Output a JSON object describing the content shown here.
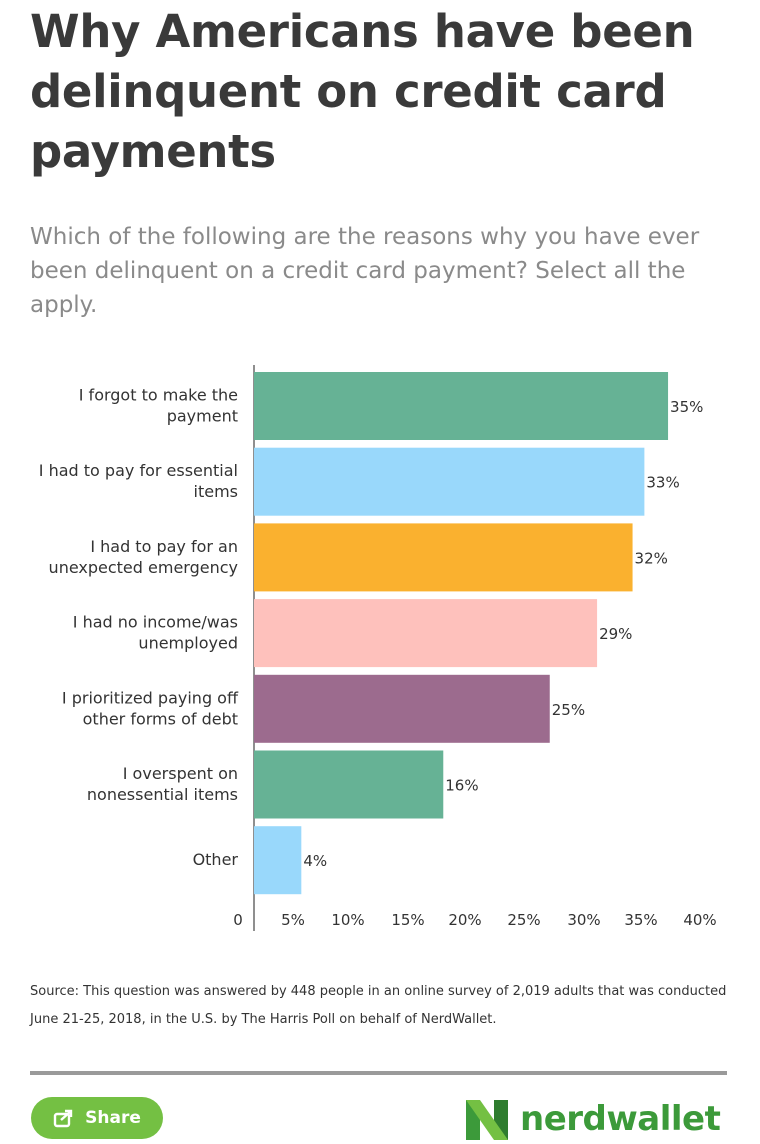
{
  "header": {
    "title": "Why Americans have been delinquent on credit card payments",
    "subtitle": "Which of the following are the reasons why you have ever been delinquent on a credit card payment? Select all the apply."
  },
  "chart_data": {
    "type": "bar",
    "orientation": "horizontal",
    "title": "",
    "xlabel": "",
    "ylabel": "",
    "categories": [
      [
        "I forgot to make the",
        "payment"
      ],
      [
        "I had to pay for essential",
        "items"
      ],
      [
        "I had to pay for an",
        "unexpected emergency"
      ],
      [
        "I had no income/was",
        "unemployed"
      ],
      [
        "I prioritized paying off",
        "other forms of debt"
      ],
      [
        "I overspent on",
        "nonessential items"
      ],
      [
        "Other"
      ]
    ],
    "values": [
      35,
      33,
      32,
      29,
      25,
      16,
      4
    ],
    "value_labels": [
      "35%",
      "33%",
      "32%",
      "29%",
      "25%",
      "16%",
      "4%"
    ],
    "colors": [
      "#66b295",
      "#99d8fb",
      "#fab12f",
      "#fec1bc",
      "#9c6b8e",
      "#66b295",
      "#99d8fb"
    ],
    "x_ticks": [
      "0",
      "5%",
      "10%",
      "15%",
      "20%",
      "25%",
      "30%",
      "35%",
      "40%"
    ],
    "xlim": [
      0,
      40
    ],
    "grid": false,
    "legend": "none"
  },
  "footer": {
    "source": "Source: This question was answered by 448 people in an online survey of 2,019 adults that was conducted June 21-25, 2018, in the U.S. by The Harris Poll on behalf of NerdWallet.",
    "share_label": "Share",
    "share_icon": "share-icon",
    "brand": "nerdwallet",
    "brand_color": "#3c9a3a",
    "share_color": "#74c043"
  }
}
